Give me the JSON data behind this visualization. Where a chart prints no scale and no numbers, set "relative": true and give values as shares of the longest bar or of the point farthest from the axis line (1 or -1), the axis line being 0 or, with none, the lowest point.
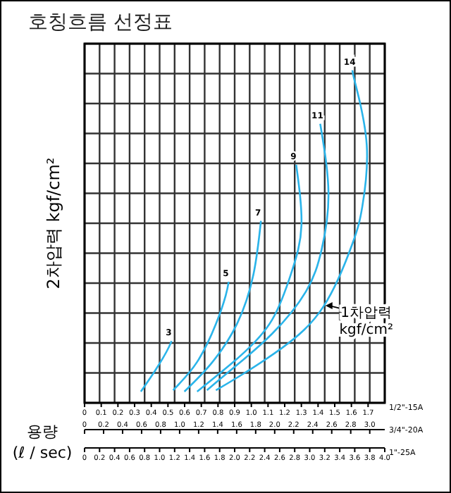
{
  "chart_data": {
    "type": "line",
    "title": "호칭흐름 선정표",
    "ylabel": "2차압력 kgf/cm²",
    "relative": true,
    "grid": true,
    "xlabel": "1\"-25A",
    "x2label": "1/2\"-15A",
    "xlim": [
      0,
      4
    ],
    "xticks": [
      0,
      0.2,
      0.4,
      0.6,
      0.8,
      {
        "value": 1,
        "label": "1.0"
      },
      1.2,
      1.4,
      1.6,
      1.8,
      {
        "value": 2,
        "label": "2.0"
      },
      2.2,
      2.4,
      2.6,
      2.8,
      {
        "value": 3,
        "label": "3.0"
      },
      3.2,
      3.4,
      3.6,
      3.8,
      {
        "value": 4,
        "label": "4.0"
      }
    ],
    "x2lim": [
      0,
      1.8
    ],
    "x2ticks": [
      0,
      0.1,
      0.2,
      0.3,
      0.4,
      0.5,
      0.6,
      0.7,
      0.8,
      0.9,
      {
        "value": 1,
        "label": "1.0"
      },
      1.1,
      1.2,
      1.3,
      1.4,
      1.5,
      1.6,
      1.7
    ],
    "annotations": [
      "용량 (ℓ / sec)",
      {
        "text": "1차압력 kgf/cm²",
        "x": 3.19,
        "y": 0.292
      },
      "0",
      "0.2",
      "0.4",
      "0.6",
      "0.8",
      "1.0",
      "1.2",
      "1.4",
      "1.6",
      "1.8",
      "2.0",
      "2.2",
      "2.4",
      "2.6",
      "2.8",
      "3.0",
      "3/4\"-20A"
    ],
    "series": [
      {
        "name": "3",
        "color": "#2ab4ea",
        "x": [
          0.75,
          0.94,
          1.09,
          1.16
        ],
        "values": [
          0.034,
          0.097,
          0.153,
          0.186
        ]
      },
      {
        "name": "5",
        "color": "#2ab4ea",
        "x": [
          1.18,
          1.5,
          1.75,
          1.88,
          1.92
        ],
        "values": [
          0.038,
          0.123,
          0.237,
          0.322,
          0.364
        ]
      },
      {
        "name": "7",
        "color": "#2ab4ea",
        "x": [
          1.33,
          1.69,
          2.03,
          2.25,
          2.35
        ],
        "values": [
          0.034,
          0.119,
          0.237,
          0.386,
          0.547
        ]
      },
      {
        "name": "9",
        "color": "#2ab4ea",
        "x": [
          1.5,
          2.07,
          2.5,
          2.76,
          2.89,
          2.82
        ],
        "values": [
          0.034,
          0.14,
          0.25,
          0.394,
          0.534,
          0.716
        ]
      },
      {
        "name": "11",
        "color": "#2ab4ea",
        "x": [
          1.63,
          2.01,
          2.5,
          2.95,
          3.16,
          3.25,
          3.14
        ],
        "values": [
          0.038,
          0.11,
          0.208,
          0.335,
          0.462,
          0.631,
          0.839
        ]
      },
      {
        "name": "14",
        "color": "#2ab4ea",
        "x": [
          1.75,
          2.07,
          2.63,
          3.19,
          3.57,
          3.7,
          3.76,
          3.61,
          3.57
        ],
        "values": [
          0.038,
          0.081,
          0.165,
          0.292,
          0.479,
          0.589,
          0.775,
          0.958,
          1
        ]
      }
    ]
  }
}
